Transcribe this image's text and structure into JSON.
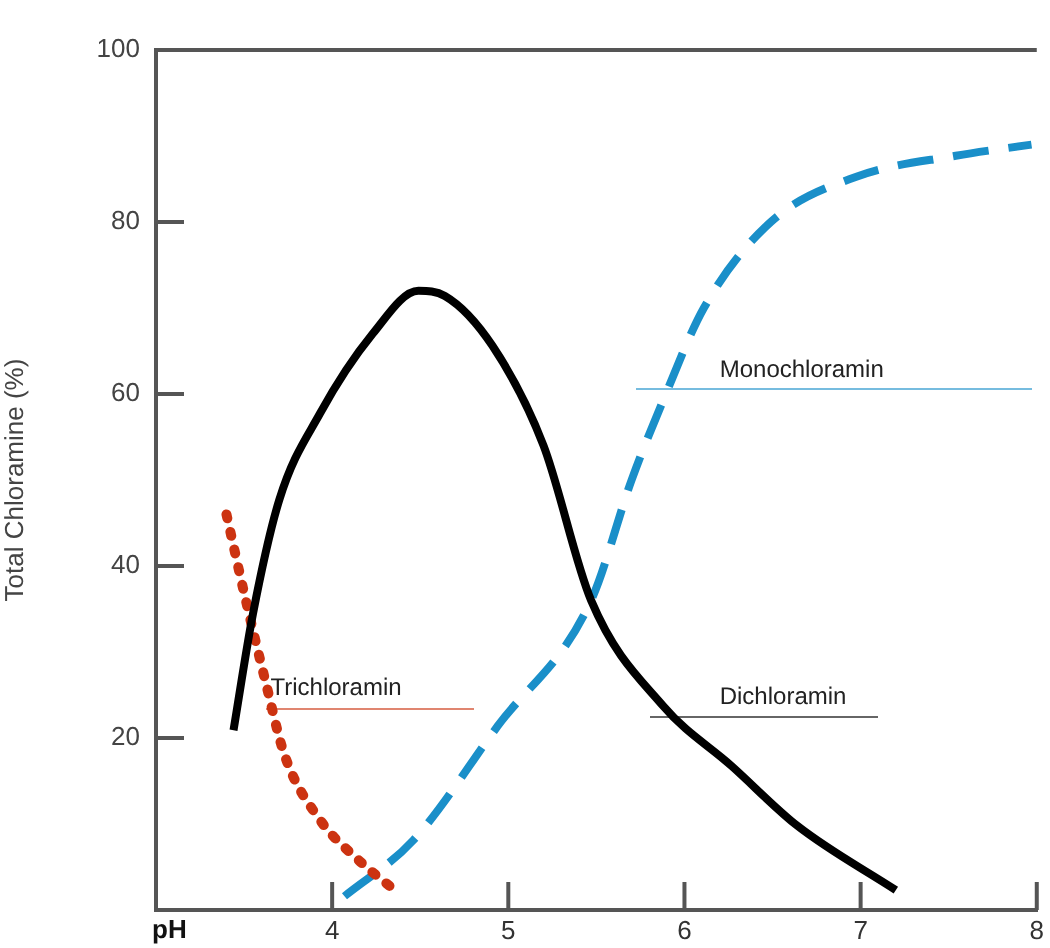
{
  "chart_data": {
    "type": "line",
    "xlabel": "pH",
    "ylabel": "Total Chloramine (%)",
    "xlim": [
      3,
      8
    ],
    "xticks": [
      4,
      5,
      6,
      7,
      8
    ],
    "ylim": [
      0,
      100
    ],
    "yticks": [
      20,
      40,
      60,
      80,
      100
    ],
    "grid": false,
    "legend": false,
    "marker": "none",
    "series": [
      {
        "name": "Dichloramin",
        "color": "#000000",
        "line_style": "solid",
        "x": [
          3.44,
          3.55,
          3.7,
          3.93,
          4.23,
          4.49,
          4.64,
          4.91,
          5.2,
          5.47,
          5.88,
          6.27,
          6.64,
          7.2
        ],
        "values": [
          20.9,
          34.4,
          47.7,
          57.7,
          67,
          72,
          71.4,
          65.6,
          54,
          36,
          23.7,
          16.7,
          9.8,
          2.3
        ]
      },
      {
        "name": "Trichloramin",
        "color": "#cc3311",
        "line_style": "dotted",
        "x": [
          3.4,
          3.51,
          3.62,
          3.73,
          3.93,
          4.15,
          4.38
        ],
        "values": [
          46,
          36,
          26.7,
          18,
          10.5,
          5.8,
          1.9
        ]
      },
      {
        "name": "Monochloramin",
        "color": "#1a8fc9",
        "line_style": "dashed",
        "x": [
          4.07,
          4.46,
          4.94,
          5.47,
          5.7,
          5.88,
          6.11,
          6.49,
          6.98,
          7.54,
          7.97
        ],
        "values": [
          1.6,
          8.1,
          21.4,
          36,
          50,
          59.3,
          70,
          80,
          85.3,
          87.7,
          89
        ]
      }
    ]
  }
}
